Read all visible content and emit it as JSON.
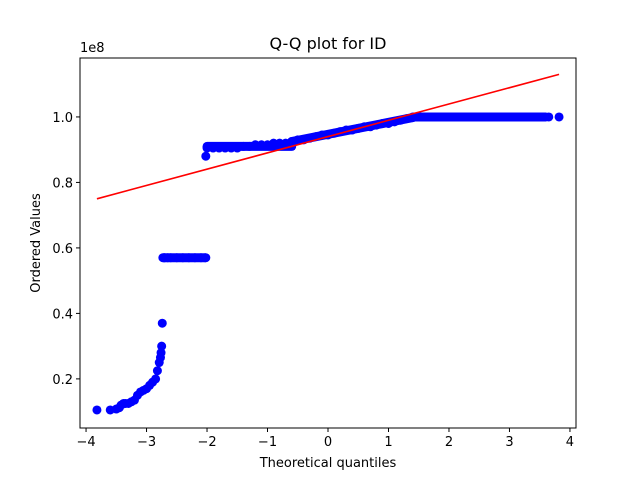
{
  "chart_data": {
    "type": "scatter",
    "title": "Q-Q plot for ID",
    "xlabel": "Theoretical quantiles",
    "ylabel": "Ordered Values",
    "y_offset_label": "1e8",
    "xlim": [
      -4.1,
      4.1
    ],
    "ylim": [
      5000000,
      118000000
    ],
    "x_ticks": [
      -4,
      -3,
      -2,
      -1,
      0,
      1,
      2,
      3,
      4
    ],
    "x_tick_labels": [
      "−4",
      "−3",
      "−2",
      "−1",
      "0",
      "1",
      "2",
      "3",
      "4"
    ],
    "y_ticks": [
      20000000,
      40000000,
      60000000,
      80000000,
      100000000
    ],
    "y_tick_labels": [
      "0.2",
      "0.4",
      "0.6",
      "0.8",
      "1.0"
    ],
    "grid": false,
    "series": [
      {
        "kind": "points",
        "color": "#0000ff",
        "x": [
          -3.82,
          -3.6,
          -3.5,
          -3.45,
          -3.42,
          -3.38,
          -3.35,
          -3.3,
          -3.25,
          -3.2,
          -3.15,
          -3.1,
          -3.05,
          -3.0,
          -2.95,
          -2.9,
          -2.85,
          -2.82,
          -2.79,
          -2.77,
          -2.76,
          -2.75,
          -2.74,
          -2.73,
          -2.72,
          -2.71,
          -2.7,
          -2.65,
          -2.6,
          -2.5,
          -2.4,
          -2.3,
          -2.2,
          -2.1,
          -2.03,
          -2.02,
          -2.0,
          -1.9,
          -1.8,
          -1.7,
          -1.6,
          -1.5,
          -1.4,
          -1.3,
          -1.2,
          -1.1,
          -1.0,
          -0.9,
          -0.8,
          -0.7,
          -0.6,
          -0.5,
          -0.4,
          -0.3,
          -0.2,
          -0.1,
          0.0,
          0.1,
          0.2,
          0.3,
          0.4,
          0.5,
          0.6,
          0.7,
          0.8,
          0.9,
          1.0,
          1.1,
          1.2,
          1.3,
          1.4,
          1.5,
          1.7,
          1.9,
          2.1,
          2.3,
          2.5,
          2.7,
          2.9,
          3.1,
          3.3,
          3.5,
          3.65,
          3.82
        ],
        "y": [
          10500000,
          10500000,
          10800000,
          11200000,
          12000000,
          12500000,
          12500000,
          12500000,
          13000000,
          13500000,
          15000000,
          16000000,
          16500000,
          17000000,
          18000000,
          19000000,
          20000000,
          22500000,
          25000000,
          26500000,
          28000000,
          30000000,
          37000000,
          57000000,
          57000000,
          57000000,
          57000000,
          57000000,
          57000000,
          57000000,
          57000000,
          57000000,
          57000000,
          57000000,
          57000000,
          88000000,
          90500000,
          90500000,
          90500000,
          90500000,
          90500000,
          90500000,
          91000000,
          91000000,
          91500000,
          91500000,
          91500000,
          92000000,
          92000000,
          92000000,
          92500000,
          93000000,
          93000000,
          93500000,
          94000000,
          94500000,
          94500000,
          95000000,
          95500000,
          96000000,
          96000000,
          96500000,
          97000000,
          97000000,
          97500000,
          98000000,
          98000000,
          98500000,
          99000000,
          99500000,
          99800000,
          100000000,
          100000000,
          100000000,
          100000000,
          100000000,
          100000000,
          100000000,
          100000000,
          100000000,
          100000000,
          100000000,
          100000000,
          100000000
        ]
      },
      {
        "kind": "fit-line",
        "color": "#ff0000",
        "x": [
          -3.82,
          3.82
        ],
        "y": [
          75000000,
          113000000
        ]
      }
    ]
  }
}
